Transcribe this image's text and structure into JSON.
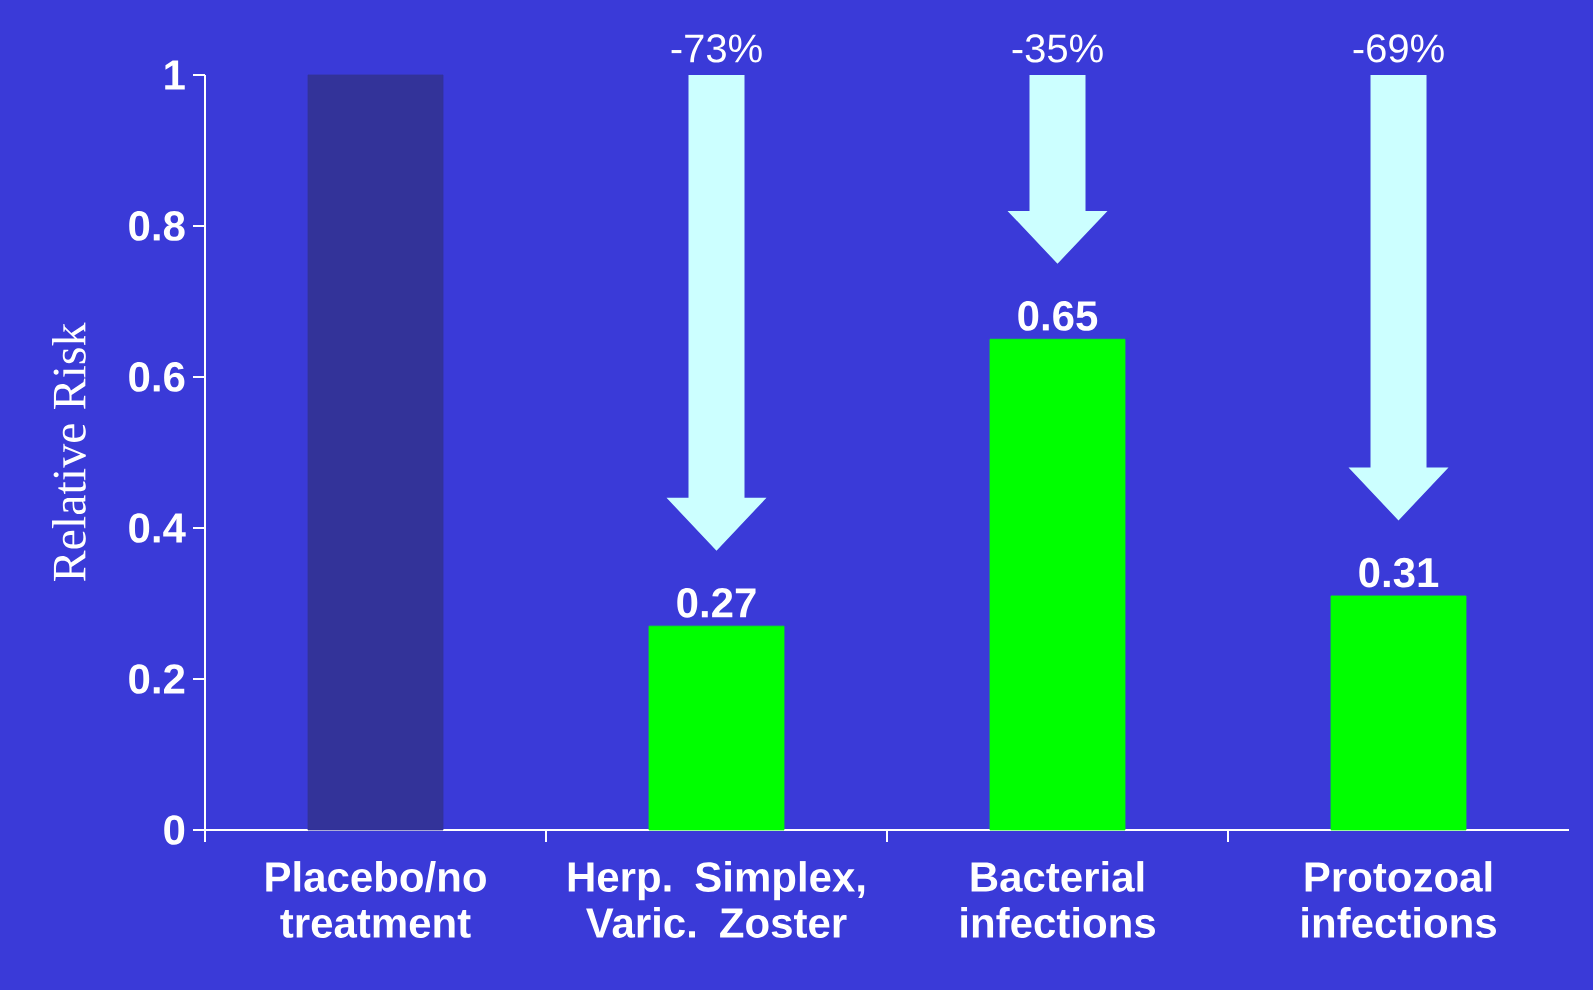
{
  "chart_data": {
    "type": "bar",
    "ylabel": "Relative Risk",
    "categories": [
      "Placebo/no treatment",
      "Herp. Simplex, Varic. Zoster",
      "Bacterial infections",
      "Protozoal infections"
    ],
    "values": [
      1,
      0.27,
      0.65,
      0.31
    ],
    "colors": [
      "#333399",
      "#00ff00",
      "#00ff00",
      "#00ff00"
    ],
    "value_labels": [
      null,
      "0.27",
      "0.65",
      "0.31"
    ],
    "annotations": [
      "-73%",
      "-35%",
      "-69%"
    ],
    "ylim": [
      0,
      1
    ],
    "yticks": [
      0,
      0.2,
      0.4,
      0.6,
      0.8,
      1
    ]
  }
}
